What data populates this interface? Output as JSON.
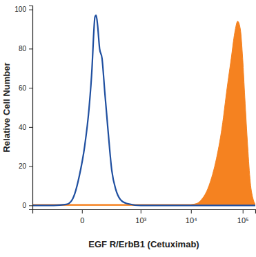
{
  "chart_data": {
    "type": "line",
    "x_label": "EGF R/ErbB1 (Cetuximab)",
    "y_label": "Relative Cell Number",
    "log": "x",
    "xlim": [
      -640,
      175000
    ],
    "xticks": [
      0,
      {
        "value": 1000,
        "label": "10³"
      },
      {
        "value": 10000,
        "label": "10⁴"
      },
      {
        "value": 100000,
        "label": "10⁵"
      }
    ],
    "ylim": [
      -2,
      102
    ],
    "yticks": [
      0,
      20,
      40,
      60,
      80,
      100
    ],
    "series": [
      {
        "type": "line",
        "color": "#1f4fa0",
        "x": [
          -640,
          -200,
          -80,
          -50,
          -30,
          -10,
          10,
          30,
          45,
          55,
          62,
          70,
          80,
          95,
          115,
          140,
          175,
          220,
          280,
          360,
          500,
          1000,
          175000
        ],
        "values": [
          0,
          0,
          0.5,
          2,
          6,
          15,
          30,
          50,
          70,
          88,
          96,
          97,
          92,
          80,
          75,
          58,
          38,
          18,
          8,
          3,
          1,
          0,
          0
        ]
      },
      {
        "type": "area",
        "color": "#f58220",
        "x": [
          -640,
          10000,
          13000,
          16000,
          20000,
          25000,
          30000,
          40000,
          50000,
          60000,
          70000,
          80000,
          90000,
          100000,
          110000,
          125000,
          140000,
          160000,
          175000
        ],
        "values": [
          0.5,
          0.5,
          1,
          3,
          7,
          14,
          22,
          40,
          60,
          75,
          88,
          94,
          90,
          75,
          55,
          30,
          12,
          3,
          0.5
        ]
      }
    ]
  }
}
